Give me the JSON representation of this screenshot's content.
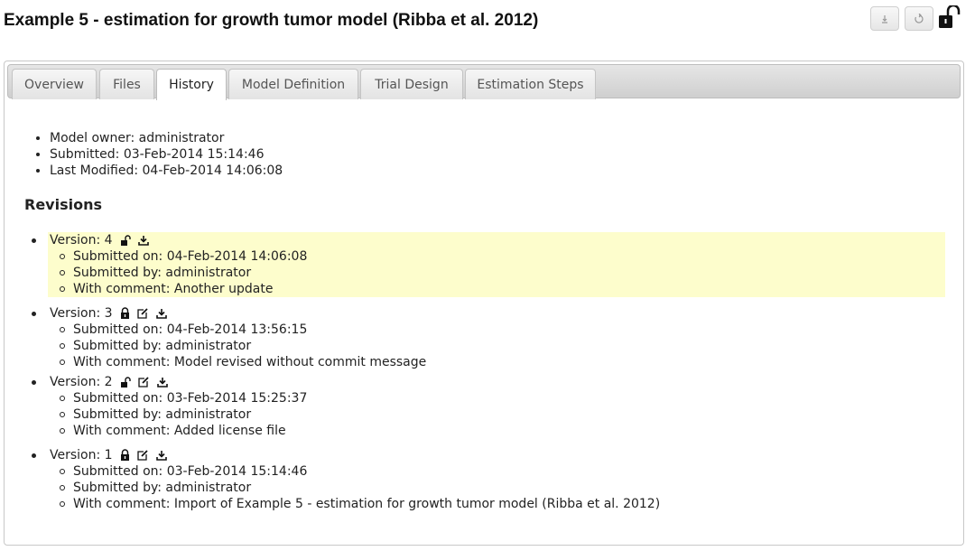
{
  "header": {
    "title": "Example 5 - estimation for growth tumor model (Ribba et al. 2012)",
    "download_icon": "download-icon",
    "sync_icon": "sync-icon",
    "lock_icon": "unlocked-padlock-icon"
  },
  "tabs": [
    {
      "label": "Overview",
      "active": false
    },
    {
      "label": "Files",
      "active": false
    },
    {
      "label": "History",
      "active": true
    },
    {
      "label": "Model Definition",
      "active": false
    },
    {
      "label": "Trial Design",
      "active": false
    },
    {
      "label": "Estimation Steps",
      "active": false
    }
  ],
  "meta": {
    "owner": "Model owner: administrator",
    "submitted": "Submitted: 03-Feb-2014 15:14:46",
    "modified": "Last Modified: 04-Feb-2014 14:06:08"
  },
  "revisions_title": "Revisions",
  "revisions": [
    {
      "version": "Version: 4",
      "submitted_on": "Submitted on: 04-Feb-2014 14:06:08",
      "submitted_by": "Submitted by: administrator",
      "comment": "With comment: Another update",
      "highlighted": true,
      "icons": [
        "unlocked-icon",
        "download-icon"
      ]
    },
    {
      "version": "Version: 3",
      "submitted_on": "Submitted on: 04-Feb-2014 13:56:15",
      "submitted_by": "Submitted by: administrator",
      "comment": "With comment: Model revised without commit message",
      "highlighted": false,
      "icons": [
        "locked-icon",
        "edit-icon",
        "download-icon"
      ]
    },
    {
      "version": "Version: 2",
      "submitted_on": "Submitted on: 03-Feb-2014 15:25:37",
      "submitted_by": "Submitted by: administrator",
      "comment": "With comment: Added license file",
      "highlighted": false,
      "icons": [
        "unlocked-icon",
        "edit-icon",
        "download-icon"
      ]
    },
    {
      "version": "Version: 1",
      "submitted_on": "Submitted on: 03-Feb-2014 15:14:46",
      "submitted_by": "Submitted by: administrator",
      "comment": "With comment: Import of Example 5 - estimation for growth tumor model (Ribba et al. 2012)",
      "highlighted": false,
      "icons": [
        "locked-icon",
        "edit-icon",
        "download-icon"
      ]
    }
  ],
  "colors": {
    "highlight": "#fdfdcc",
    "tabbar": "#d6d6d6"
  }
}
